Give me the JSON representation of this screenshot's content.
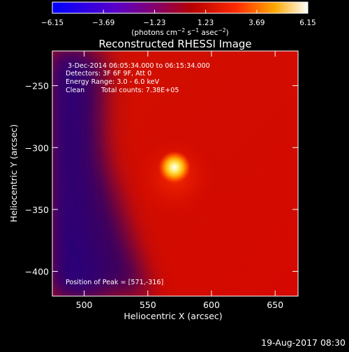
{
  "chart_data": {
    "type": "heatmap",
    "title": "Reconstructed RHESSI Image",
    "xlabel": "Heliocentric X (arcsec)",
    "ylabel": "Heliocentric Y (arcsec)",
    "xlim": [
      475,
      668
    ],
    "ylim": [
      -420,
      -222
    ],
    "x_ticks": [
      {
        "value": 500,
        "label": "500"
      },
      {
        "value": 550,
        "label": "550"
      },
      {
        "value": 600,
        "label": "600"
      },
      {
        "value": 650,
        "label": "650"
      }
    ],
    "y_ticks": [
      {
        "value": -250,
        "label": "−250"
      },
      {
        "value": -300,
        "label": "−300"
      },
      {
        "value": -350,
        "label": "−350"
      },
      {
        "value": -400,
        "label": "−400"
      }
    ],
    "colorbar": {
      "min": -6.15,
      "max": 6.15,
      "ticks": [
        {
          "value": -6.15,
          "label": "−6.15"
        },
        {
          "value": -3.69,
          "label": "−3.69"
        },
        {
          "value": -1.23,
          "label": "−1.23"
        },
        {
          "value": 1.23,
          "label": "1.23"
        },
        {
          "value": 3.69,
          "label": "3.69"
        },
        {
          "value": 6.15,
          "label": "6.15"
        }
      ],
      "unit_parts": {
        "lead": "(photons cm",
        "exp1": "−2",
        "mid1": " s",
        "exp2": "−1",
        "mid2": " asec",
        "exp3": "−2",
        "tail": ")"
      },
      "stops": [
        "#0000ff",
        "#5a00c8",
        "#8a0060",
        "#b80000",
        "#ff2a00",
        "#ffa800",
        "#ffffff"
      ]
    },
    "annotations": {
      "time_range": "3-Dec-2014 06:05:34.000 to 06:15:34.000",
      "detectors": "Detectors: 3F 6F 9F, Att 0",
      "energy": "Energy Range: 3.0 - 6.0 keV",
      "method": "Clean",
      "counts": "Total counts: 7.38E+05",
      "peak": "Position of Peak = [571,-316]"
    },
    "source": {
      "x": 571,
      "y": -316
    }
  },
  "footer": {
    "timestamp": "19-Aug-2017 08:30"
  }
}
